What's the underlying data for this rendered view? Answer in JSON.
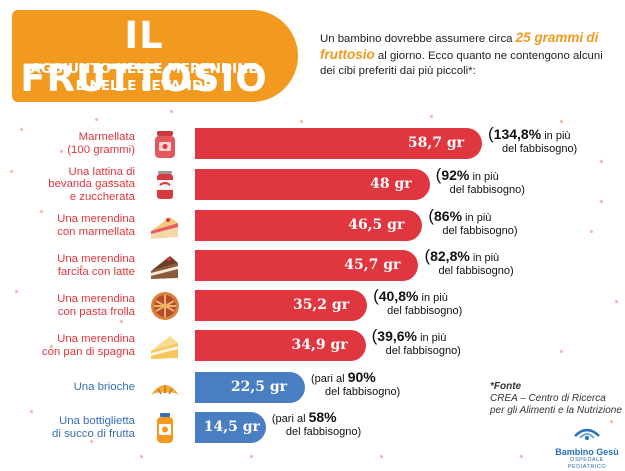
{
  "header": {
    "title": "IL FRUTTOSIO",
    "subtitle_line1": "AGGIUNTO NELLE MERENDINE",
    "subtitle_line2": "E NELLE BEVANDE"
  },
  "intro": {
    "part1": "Un bambino dovrebbe assumere circa ",
    "highlight1": "25 grammi",
    "highlight2": "di fruttosio",
    "part2": " al giorno. Ecco quanto ne contengono alcuni dei cibi preferiti dai più piccoli*:"
  },
  "colors": {
    "orange": "#f29a1f",
    "red": "#e0363f",
    "blue": "#4a7ec2",
    "label_red": "#e0363f",
    "label_blue": "#3a6db5"
  },
  "chart_data": {
    "type": "bar",
    "orientation": "horizontal",
    "unit": "gr",
    "categories": [
      "Marmellata (100 grammi)",
      "Una lattina di bevanda gassata e zuccherata",
      "Una merendina con marmellata",
      "Una merendina farcita con latte",
      "Una merendina con pasta frolla",
      "Una merendina con pan di spagna",
      "Una brioche",
      "Una bottiglietta di succo di frutta"
    ],
    "values": [
      58.7,
      48,
      46.5,
      45.7,
      35.2,
      34.9,
      22.5,
      14.5
    ],
    "value_labels": [
      "58,7 gr",
      "48 gr",
      "46,5 gr",
      "45,7 gr",
      "35,2 gr",
      "34,9 gr",
      "22,5 gr",
      "14,5 gr"
    ],
    "percent_labels": [
      "134,8%",
      "92%",
      "86%",
      "82,8%",
      "40,8%",
      "39,6%",
      "90%",
      "58%"
    ],
    "percent_type": [
      "in più",
      "in più",
      "in più",
      "in più",
      "in più",
      "in più",
      "pari al",
      "pari al"
    ],
    "bar_colors": [
      "red",
      "red",
      "red",
      "red",
      "red",
      "red",
      "blue",
      "blue"
    ]
  },
  "rows": [
    {
      "label_lines": [
        "Marmellata",
        "(100 grammi)"
      ],
      "icon": "jam-jar-icon"
    },
    {
      "label_lines": [
        "Una lattina di",
        "bevanda gassata",
        "e zuccherata"
      ],
      "icon": "soda-can-icon"
    },
    {
      "label_lines": [
        "Una merendina",
        "con marmellata"
      ],
      "icon": "jam-cake-icon"
    },
    {
      "label_lines": [
        "Una merendina",
        "farcita con latte"
      ],
      "icon": "chocolate-cake-icon"
    },
    {
      "label_lines": [
        "Una merendina",
        "con pasta frolla"
      ],
      "icon": "tart-icon"
    },
    {
      "label_lines": [
        "Una merendina",
        "con pan di spagna"
      ],
      "icon": "sponge-cake-icon"
    },
    {
      "label_lines": [
        "Una brioche"
      ],
      "icon": "croissant-icon"
    },
    {
      "label_lines": [
        "Una bottiglietta",
        "di succo di frutta"
      ],
      "icon": "juice-bottle-icon"
    }
  ],
  "note_text": {
    "in_piu": "in più",
    "del_fabbisogno": "del fabbisogno)",
    "pari_al": "pari al"
  },
  "source": {
    "head": "*Fonte",
    "line1": "CREA – Centro di Ricerca",
    "line2": "per gli Alimenti e la Nutrizione"
  },
  "logo": {
    "name": "Bambino Gesù",
    "sub": "OSPEDALE PEDIATRICO"
  }
}
